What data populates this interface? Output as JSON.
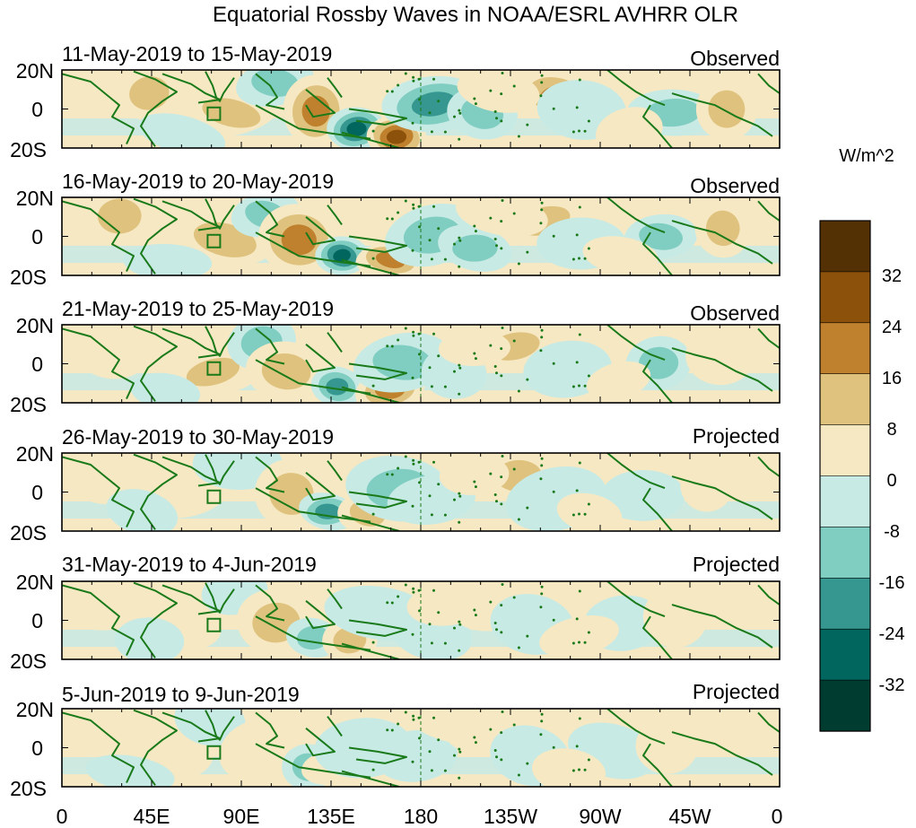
{
  "title": "Equatorial Rossby Waves in NOAA/ESRL AVHRR OLR",
  "units_label": "W/m^2",
  "lat_labels": [
    "20N",
    "0",
    "20S"
  ],
  "lon_labels": [
    "0",
    "45E",
    "90E",
    "135E",
    "180",
    "135W",
    "90W",
    "45W",
    "0"
  ],
  "panels": [
    {
      "date_range": "11-May-2019 to 15-May-2019",
      "status": "Observed",
      "intensity": 1.0
    },
    {
      "date_range": "16-May-2019 to 20-May-2019",
      "status": "Observed",
      "intensity": 0.85
    },
    {
      "date_range": "21-May-2019 to 25-May-2019",
      "status": "Observed",
      "intensity": 0.7
    },
    {
      "date_range": "26-May-2019 to 30-May-2019",
      "status": "Projected",
      "intensity": 0.55
    },
    {
      "date_range": "31-May-2019 to 4-Jun-2019",
      "status": "Projected",
      "intensity": 0.4
    },
    {
      "date_range": "5-Jun-2019 to 9-Jun-2019",
      "status": "Projected",
      "intensity": 0.3
    }
  ],
  "colorbar": {
    "tick_labels": [
      "32",
      "24",
      "16",
      "8",
      "0",
      "-8",
      "-16",
      "-24",
      "-32"
    ],
    "colors": [
      "#543005",
      "#8c510a",
      "#bf812d",
      "#dfc27d",
      "#f6e8c3",
      "#c7eae5",
      "#80cdc1",
      "#35978f",
      "#01665e",
      "#003c30"
    ]
  },
  "colors": {
    "coast": "#1a7a1a",
    "frame": "#000000"
  }
}
